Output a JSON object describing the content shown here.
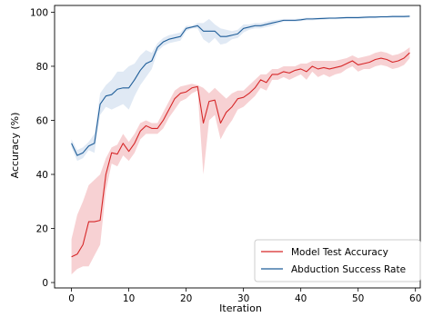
{
  "chart_data": {
    "type": "line",
    "xlabel": "Iteration",
    "ylabel": "Accuracy (%)",
    "xlim": [
      -2.95,
      61.95
    ],
    "ylim": [
      -2.0,
      102.5
    ],
    "xticks": [
      0,
      10,
      20,
      30,
      40,
      50,
      60
    ],
    "yticks": [
      0,
      20,
      40,
      60,
      80,
      100
    ],
    "grid": false,
    "legend_position": "bottom-right",
    "series": [
      {
        "name": "Model Test Accuracy",
        "color": "#d62728",
        "band_color": "#f4c2c4",
        "x": [
          0,
          1,
          2,
          3,
          4,
          5,
          6,
          7,
          8,
          9,
          10,
          11,
          12,
          13,
          14,
          15,
          16,
          17,
          18,
          19,
          20,
          21,
          22,
          23,
          24,
          25,
          26,
          27,
          28,
          29,
          30,
          31,
          32,
          33,
          34,
          35,
          36,
          37,
          38,
          39,
          40,
          41,
          42,
          43,
          44,
          45,
          46,
          47,
          48,
          49,
          50,
          51,
          52,
          53,
          54,
          55,
          56,
          57,
          58,
          59
        ],
        "y": [
          9.5,
          10.5,
          14,
          22.5,
          22.5,
          23,
          40,
          48,
          47.5,
          51.5,
          48.5,
          51.5,
          56,
          58,
          57,
          57,
          60,
          64,
          68,
          70,
          70.5,
          72,
          72.5,
          59,
          67,
          67.5,
          59,
          63,
          65,
          68,
          68.5,
          70,
          72,
          75,
          74,
          77,
          77,
          78,
          77.5,
          78.5,
          79,
          78,
          80,
          79,
          79.5,
          79,
          79.5,
          80,
          81,
          82,
          80.5,
          81,
          81.5,
          82.5,
          83,
          82.5,
          81.5,
          82,
          83,
          85
        ],
        "upper": [
          16,
          25,
          30,
          36,
          38,
          40,
          46,
          50,
          51,
          55,
          52,
          55,
          59,
          60,
          59,
          59,
          63,
          67,
          71,
          72.5,
          73,
          73.5,
          73,
          72,
          70,
          72,
          70,
          68,
          70,
          71,
          71,
          73,
          75,
          77,
          77,
          79,
          79,
          80,
          80,
          80,
          81,
          81,
          82,
          82,
          82,
          82,
          82,
          82.5,
          83,
          84,
          83,
          83.5,
          84,
          85,
          85.5,
          85,
          84,
          84.5,
          85.5,
          87
        ],
        "lower": [
          3,
          5,
          6,
          6,
          10,
          14,
          34,
          44,
          43,
          47,
          45,
          48,
          53,
          55,
          55,
          55,
          57,
          61,
          64,
          67,
          68,
          70,
          71,
          40,
          60,
          62,
          53,
          57,
          60,
          64,
          65,
          67,
          69,
          72,
          71,
          75,
          75,
          76,
          75,
          76,
          77,
          75,
          78,
          76,
          77,
          76,
          77,
          77.5,
          79,
          80,
          78,
          79,
          79,
          80,
          80.5,
          80,
          79,
          79.5,
          80.5,
          83
        ]
      },
      {
        "name": "Abduction Success Rate",
        "color": "#1f5e99",
        "band_color": "#d6e2f0",
        "x": [
          0,
          1,
          2,
          3,
          4,
          5,
          6,
          7,
          8,
          9,
          10,
          11,
          12,
          13,
          14,
          15,
          16,
          17,
          18,
          19,
          20,
          21,
          22,
          23,
          24,
          25,
          26,
          27,
          28,
          29,
          30,
          31,
          32,
          33,
          34,
          35,
          36,
          37,
          38,
          39,
          40,
          41,
          42,
          43,
          44,
          45,
          46,
          47,
          48,
          49,
          50,
          51,
          52,
          53,
          54,
          55,
          56,
          57,
          58,
          59
        ],
        "y": [
          51.5,
          47,
          48,
          50.5,
          51.5,
          66,
          69,
          69.5,
          71.5,
          72,
          72,
          75,
          78.5,
          81,
          82,
          87,
          89,
          90,
          90.5,
          91,
          94,
          94.5,
          95,
          93,
          93,
          93,
          91,
          91,
          91.5,
          92,
          94,
          94.5,
          95,
          95,
          95.5,
          96,
          96.5,
          97,
          97,
          97,
          97.2,
          97.5,
          97.5,
          97.6,
          97.7,
          97.8,
          97.8,
          97.9,
          98,
          98,
          98,
          98.1,
          98.2,
          98.2,
          98.3,
          98.3,
          98.4,
          98.4,
          98.4,
          98.5
        ],
        "upper": [
          53,
          49,
          50,
          52,
          55,
          70,
          73,
          75,
          78,
          78,
          80,
          81,
          84,
          86,
          85,
          88.5,
          90.5,
          91.5,
          92,
          92.5,
          95,
          95,
          96,
          96,
          97.5,
          95.5,
          94,
          93.5,
          93,
          93.5,
          95.5,
          95.5,
          96,
          96,
          96.5,
          97,
          97.2,
          97.5,
          97.5,
          97.5,
          97.7,
          98,
          98,
          98,
          98.1,
          98.2,
          98.2,
          98.3,
          98.4,
          98.4,
          98.4,
          98.5,
          98.6,
          98.6,
          98.7,
          98.7,
          98.8,
          98.8,
          98.8,
          98.9
        ],
        "lower": [
          50,
          45,
          46,
          49,
          48,
          62,
          65,
          64,
          65,
          66,
          64,
          69,
          73,
          76,
          79,
          85.5,
          87.5,
          88.5,
          89,
          89.5,
          93,
          94,
          94,
          90,
          88.5,
          90.5,
          88,
          88.5,
          90,
          90.5,
          92.5,
          93.5,
          94,
          94,
          94.5,
          95,
          95.8,
          96.5,
          96.5,
          96.5,
          96.7,
          97,
          97,
          97.2,
          97.3,
          97.4,
          97.4,
          97.5,
          97.6,
          97.6,
          97.6,
          97.7,
          97.8,
          97.8,
          97.9,
          97.9,
          98,
          98,
          98,
          98.1
        ]
      }
    ]
  }
}
